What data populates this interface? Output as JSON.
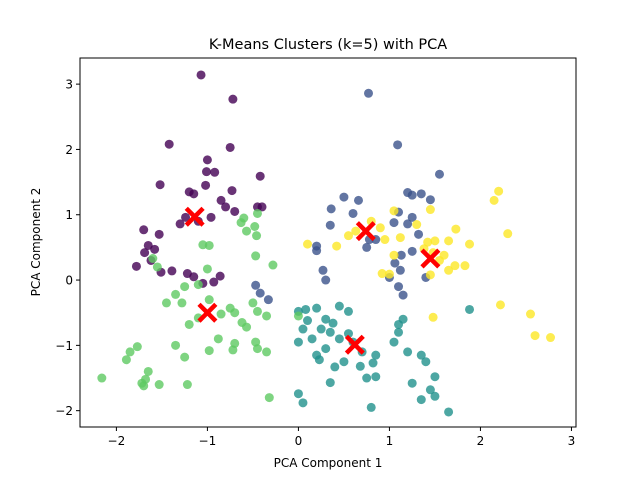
{
  "chart_data": {
    "type": "scatter",
    "title": "K-Means Clusters (k=5) with PCA",
    "xlabel": "PCA Component 1",
    "ylabel": "PCA Component 2",
    "xlim": [
      -2.4,
      3.05
    ],
    "ylim": [
      -2.25,
      3.4
    ],
    "xticks": [
      -2,
      -1,
      0,
      1,
      2,
      3
    ],
    "yticks": [
      -2,
      -1,
      0,
      1,
      2,
      3
    ],
    "grid": false,
    "legend": "none",
    "series": [
      {
        "cluster": 0,
        "color": "#440154",
        "points": [
          [
            -1.07,
            3.14
          ],
          [
            -0.72,
            2.77
          ],
          [
            -1.42,
            2.08
          ],
          [
            -0.75,
            2.03
          ],
          [
            -1.0,
            1.84
          ],
          [
            -1.01,
            1.66
          ],
          [
            -0.42,
            1.59
          ],
          [
            -0.92,
            1.65
          ],
          [
            -1.52,
            1.46
          ],
          [
            -1.02,
            1.45
          ],
          [
            -1.2,
            1.35
          ],
          [
            -0.73,
            1.37
          ],
          [
            -1.15,
            1.32
          ],
          [
            -0.85,
            1.22
          ],
          [
            -0.8,
            1.12
          ],
          [
            -0.45,
            1.12
          ],
          [
            -0.4,
            1.12
          ],
          [
            -0.7,
            1.05
          ],
          [
            -0.96,
            0.96
          ],
          [
            -1.24,
            0.96
          ],
          [
            -1.3,
            0.86
          ],
          [
            -1.7,
            0.77
          ],
          [
            -1.53,
            0.7
          ],
          [
            -1.58,
            0.47
          ],
          [
            -1.69,
            0.42
          ],
          [
            -1.62,
            0.3
          ],
          [
            -1.78,
            0.21
          ],
          [
            -1.51,
            0.12
          ],
          [
            -1.39,
            0.14
          ],
          [
            -1.22,
            0.1
          ],
          [
            -1.15,
            0.05
          ],
          [
            -1.05,
            -0.05
          ],
          [
            -0.93,
            -0.03
          ],
          [
            -0.86,
            0.06
          ],
          [
            -1.65,
            0.53
          ],
          [
            -1.1,
            0.9
          ]
        ]
      },
      {
        "cluster": 1,
        "color": "#3b528b",
        "points": [
          [
            0.77,
            2.86
          ],
          [
            1.09,
            2.07
          ],
          [
            1.55,
            1.62
          ],
          [
            1.2,
            1.34
          ],
          [
            1.25,
            1.3
          ],
          [
            1.35,
            1.32
          ],
          [
            0.5,
            1.27
          ],
          [
            0.66,
            1.22
          ],
          [
            1.45,
            1.23
          ],
          [
            0.36,
            1.09
          ],
          [
            0.6,
            1.02
          ],
          [
            1.1,
            1.04
          ],
          [
            1.25,
            0.96
          ],
          [
            1.05,
            0.88
          ],
          [
            1.2,
            0.86
          ],
          [
            0.35,
            0.84
          ],
          [
            1.32,
            0.7
          ],
          [
            0.78,
            0.62
          ],
          [
            0.2,
            0.52
          ],
          [
            0.2,
            0.45
          ],
          [
            0.75,
            0.5
          ],
          [
            1.13,
            0.38
          ],
          [
            1.25,
            0.44
          ],
          [
            0.27,
            0.15
          ],
          [
            0.3,
            0.0
          ],
          [
            1.12,
            0.15
          ],
          [
            1.0,
            0.04
          ],
          [
            1.1,
            -0.1
          ],
          [
            1.4,
            0.04
          ],
          [
            1.15,
            -0.23
          ],
          [
            -0.47,
            -0.08
          ],
          [
            -0.33,
            -0.3
          ],
          [
            -0.42,
            -0.2
          ],
          [
            1.06,
            0.26
          ],
          [
            0.85,
            0.62
          ]
        ]
      },
      {
        "cluster": 2,
        "color": "#21918c",
        "points": [
          [
            0.0,
            -0.48
          ],
          [
            0.08,
            -0.45
          ],
          [
            0.2,
            -0.43
          ],
          [
            0.45,
            -0.4
          ],
          [
            0.55,
            -0.48
          ],
          [
            0.3,
            -0.6
          ],
          [
            0.38,
            -0.66
          ],
          [
            0.25,
            -0.75
          ],
          [
            0.35,
            -0.8
          ],
          [
            0.1,
            -0.62
          ],
          [
            0.05,
            -0.75
          ],
          [
            0.45,
            -0.9
          ],
          [
            0.55,
            -0.82
          ],
          [
            0.6,
            -0.95
          ],
          [
            0.7,
            -1.1
          ],
          [
            0.3,
            -1.05
          ],
          [
            0.2,
            -1.15
          ],
          [
            0.23,
            -1.22
          ],
          [
            0.5,
            -1.25
          ],
          [
            0.4,
            -1.33
          ],
          [
            0.85,
            -1.15
          ],
          [
            0.82,
            -1.27
          ],
          [
            0.68,
            -1.32
          ],
          [
            0.75,
            -1.5
          ],
          [
            0.35,
            -1.57
          ],
          [
            0.85,
            -1.48
          ],
          [
            1.15,
            -0.6
          ],
          [
            1.1,
            -0.68
          ],
          [
            1.1,
            -0.8
          ],
          [
            1.2,
            -1.1
          ],
          [
            1.35,
            -1.15
          ],
          [
            1.4,
            -1.25
          ],
          [
            1.25,
            -1.58
          ],
          [
            1.45,
            -1.68
          ],
          [
            1.5,
            -1.78
          ],
          [
            1.35,
            -1.83
          ],
          [
            1.5,
            -1.48
          ],
          [
            1.65,
            -2.02
          ],
          [
            0.8,
            -1.95
          ],
          [
            0.05,
            -1.88
          ],
          [
            0.0,
            -1.74
          ],
          [
            1.88,
            -0.45
          ],
          [
            1.05,
            -0.95
          ],
          [
            0.0,
            -0.95
          ],
          [
            0.15,
            -0.9
          ]
        ]
      },
      {
        "cluster": 3,
        "color": "#5ec962",
        "points": [
          [
            -0.6,
            0.95
          ],
          [
            -0.63,
            0.88
          ],
          [
            -0.57,
            0.75
          ],
          [
            -0.45,
            1.02
          ],
          [
            -0.48,
            0.82
          ],
          [
            -0.46,
            0.68
          ],
          [
            -1.05,
            0.54
          ],
          [
            -0.98,
            0.53
          ],
          [
            -1.6,
            0.33
          ],
          [
            -1.55,
            0.2
          ],
          [
            -0.28,
            0.23
          ],
          [
            -0.47,
            0.37
          ],
          [
            -1.0,
            0.17
          ],
          [
            -1.1,
            -0.07
          ],
          [
            -1.25,
            -0.1
          ],
          [
            -1.35,
            -0.22
          ],
          [
            -1.28,
            -0.35
          ],
          [
            -1.45,
            -0.35
          ],
          [
            -0.98,
            -0.3
          ],
          [
            -0.75,
            -0.43
          ],
          [
            -0.7,
            -0.5
          ],
          [
            -1.1,
            -0.58
          ],
          [
            -1.2,
            -0.68
          ],
          [
            -0.85,
            -0.52
          ],
          [
            -0.62,
            -0.65
          ],
          [
            -0.45,
            -0.48
          ],
          [
            -0.35,
            -0.55
          ],
          [
            -0.5,
            -0.35
          ],
          [
            -0.57,
            -0.72
          ],
          [
            -0.88,
            -0.9
          ],
          [
            -0.98,
            -1.08
          ],
          [
            -0.7,
            -0.97
          ],
          [
            -0.72,
            -1.07
          ],
          [
            -0.45,
            -1.05
          ],
          [
            -0.35,
            -1.1
          ],
          [
            -1.77,
            -1.02
          ],
          [
            -1.85,
            -1.1
          ],
          [
            -1.89,
            -1.22
          ],
          [
            -1.35,
            -1.0
          ],
          [
            -1.25,
            -1.18
          ],
          [
            -1.65,
            -1.4
          ],
          [
            -1.68,
            -1.52
          ],
          [
            -1.72,
            -1.58
          ],
          [
            -1.7,
            -1.62
          ],
          [
            -2.16,
            -1.5
          ],
          [
            -1.53,
            -1.6
          ],
          [
            -1.22,
            -1.6
          ],
          [
            -0.32,
            -1.8
          ],
          [
            0.0,
            -0.55
          ],
          [
            -0.47,
            -0.95
          ]
        ]
      },
      {
        "cluster": 4,
        "color": "#fde725",
        "points": [
          [
            1.05,
            1.06
          ],
          [
            1.45,
            1.08
          ],
          [
            1.3,
            0.85
          ],
          [
            0.9,
            0.8
          ],
          [
            1.73,
            0.78
          ],
          [
            0.63,
            0.75
          ],
          [
            0.55,
            0.68
          ],
          [
            1.12,
            0.65
          ],
          [
            0.95,
            0.62
          ],
          [
            1.5,
            0.6
          ],
          [
            1.65,
            0.6
          ],
          [
            1.42,
            0.58
          ],
          [
            1.88,
            0.55
          ],
          [
            0.1,
            0.55
          ],
          [
            0.42,
            0.52
          ],
          [
            1.38,
            0.48
          ],
          [
            1.48,
            0.42
          ],
          [
            1.6,
            0.38
          ],
          [
            1.05,
            0.38
          ],
          [
            1.72,
            0.22
          ],
          [
            1.83,
            0.22
          ],
          [
            1.65,
            0.15
          ],
          [
            0.92,
            0.1
          ],
          [
            1.0,
            0.09
          ],
          [
            1.45,
            0.08
          ],
          [
            2.2,
            1.36
          ],
          [
            2.15,
            1.22
          ],
          [
            2.3,
            0.71
          ],
          [
            2.22,
            -0.38
          ],
          [
            2.55,
            -0.52
          ],
          [
            2.6,
            -0.85
          ],
          [
            2.77,
            -0.88
          ],
          [
            1.48,
            -0.57
          ],
          [
            0.8,
            0.9
          ],
          [
            1.55,
            0.3
          ]
        ]
      }
    ],
    "centroids": {
      "color": "#ff0000",
      "marker": "X",
      "points": [
        [
          -1.14,
          0.97
        ],
        [
          0.74,
          0.75
        ],
        [
          0.62,
          -0.99
        ],
        [
          -1.0,
          -0.5
        ],
        [
          1.45,
          0.33
        ]
      ]
    }
  }
}
